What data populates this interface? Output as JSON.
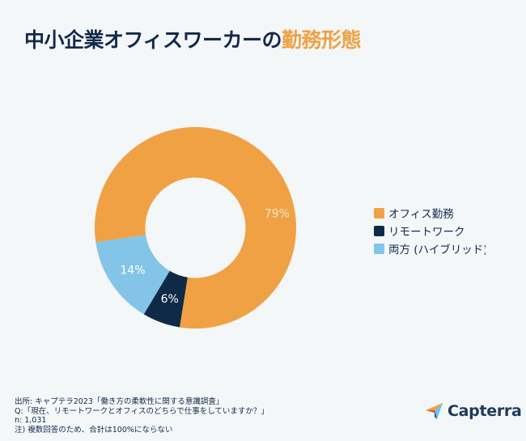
{
  "title": {
    "main": "中小企業オフィスワーカーの",
    "accent": "勤務形態"
  },
  "chart_data": {
    "type": "pie",
    "variant": "donut",
    "title": "中小企業オフィスワーカーの勤務形態",
    "categories": [
      "オフィス勤務",
      "リモートワーク",
      "両方 (ハイブリッド)"
    ],
    "values": [
      79,
      6,
      14
    ],
    "labels": [
      "79%",
      "6%",
      "14%"
    ],
    "colors": [
      "#f0a144",
      "#0f2a47",
      "#84c4e9"
    ],
    "legend_position": "right"
  },
  "legend": {
    "items": [
      {
        "label": "オフィス勤務",
        "color": "#f0a144"
      },
      {
        "label": "リモートワーク",
        "color": "#0f2a47"
      },
      {
        "label": "両方 (ハイブリッド)",
        "color": "#84c4e9"
      }
    ]
  },
  "footer": {
    "source": "出所: キャプテラ2023「働き方の柔軟性に関する意識調査」",
    "question": "Q:「現在、リモートワークとオフィスのどちらで仕事をしていますか？」",
    "n": "n: 1,031",
    "note": "注) 複数回答のため、合計は100%にならない"
  },
  "brand": {
    "name": "Capterra",
    "color": "#1e3a5c"
  }
}
